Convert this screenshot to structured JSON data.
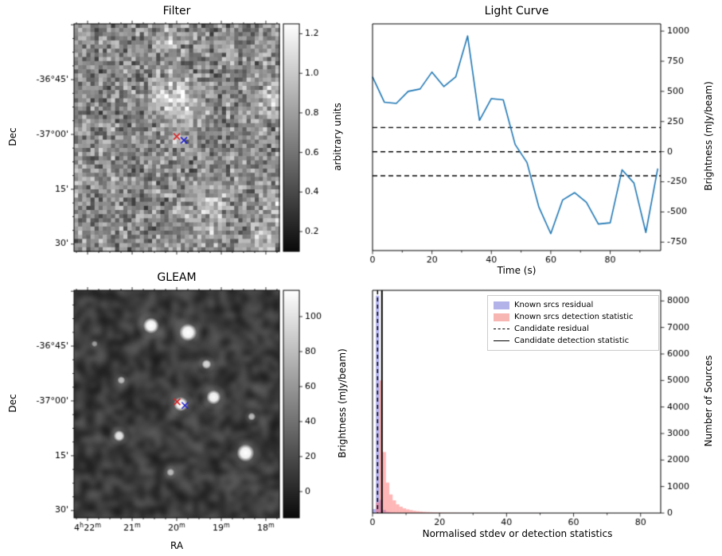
{
  "chart_data": [
    {
      "type": "heatmap",
      "title": "Filter",
      "xlabel": "",
      "ylabel": "Dec",
      "colorbar": {
        "label": "arbitrary units",
        "tick_labels": [
          "1.2",
          "1.0",
          "0.8",
          "0.6",
          "0.4",
          "0.2"
        ],
        "tick_values": [
          1.2,
          1.0,
          0.8,
          0.6,
          0.4,
          0.2
        ],
        "vmin": 0.1,
        "vmax": 1.25
      },
      "ytick_labels": [
        "-36°45'",
        "-37°00'",
        "15'",
        "30'"
      ],
      "ytick_pos": [
        0.245,
        0.486,
        0.727,
        0.965
      ],
      "xtick_pos": [
        0.066,
        0.283,
        0.5,
        0.717,
        0.934
      ],
      "markers": [
        {
          "shape": "x",
          "color": "#d62728",
          "x": 0.5,
          "y": 0.495
        },
        {
          "shape": "x",
          "color": "#2222cc",
          "x": 0.535,
          "y": 0.512
        }
      ]
    },
    {
      "type": "line",
      "title": "Light Curve",
      "xlabel": "Time (s)",
      "ylabel": "Brightness (mJy/beam)",
      "line_color": "#1f77b4",
      "x": [
        0,
        4,
        8,
        12,
        16,
        20,
        24,
        28,
        32,
        36,
        40,
        44,
        48,
        52,
        56,
        60,
        64,
        68,
        72,
        76,
        80,
        84,
        88,
        92,
        96
      ],
      "y": [
        620,
        410,
        400,
        500,
        520,
        660,
        540,
        620,
        960,
        260,
        440,
        430,
        60,
        -90,
        -460,
        -680,
        -400,
        -340,
        -420,
        -600,
        -590,
        -150,
        -260,
        -670,
        -140
      ],
      "xticks": [
        0,
        20,
        40,
        60,
        80
      ],
      "yticks": [
        1000,
        750,
        500,
        250,
        0,
        -250,
        -500,
        -750
      ],
      "xlim": [
        0,
        97
      ],
      "ylim": [
        -820,
        1060
      ],
      "hlines": {
        "style": "dashed",
        "values": [
          200,
          0,
          -200
        ]
      }
    },
    {
      "type": "heatmap",
      "title": "GLEAM",
      "xlabel": "RA",
      "ylabel": "Dec",
      "colorbar": {
        "label": "Brightness (mJy/beam)",
        "tick_labels": [
          "100",
          "80",
          "60",
          "40",
          "20",
          "0"
        ],
        "tick_values": [
          100,
          80,
          60,
          40,
          20,
          0
        ],
        "vmin": -15,
        "vmax": 115
      },
      "xtick_labels": [
        "4h22m",
        "21m",
        "20m",
        "19m",
        "18m"
      ],
      "xtick_pos": [
        0.066,
        0.283,
        0.5,
        0.717,
        0.934
      ],
      "ytick_labels": [
        "-36°45'",
        "-37°00'",
        "15'",
        "30'"
      ],
      "ytick_pos": [
        0.245,
        0.486,
        0.727,
        0.965
      ],
      "sources": [
        {
          "x": 0.375,
          "y": 0.155,
          "r": 10,
          "i": 1.0
        },
        {
          "x": 0.555,
          "y": 0.185,
          "r": 11,
          "i": 1.0
        },
        {
          "x": 0.645,
          "y": 0.325,
          "r": 6,
          "i": 0.75
        },
        {
          "x": 0.23,
          "y": 0.395,
          "r": 5,
          "i": 0.6
        },
        {
          "x": 0.1,
          "y": 0.235,
          "r": 4,
          "i": 0.45
        },
        {
          "x": 0.52,
          "y": 0.5,
          "r": 9,
          "i": 1.0
        },
        {
          "x": 0.68,
          "y": 0.47,
          "r": 9,
          "i": 0.95
        },
        {
          "x": 0.22,
          "y": 0.64,
          "r": 7,
          "i": 0.85
        },
        {
          "x": 0.865,
          "y": 0.555,
          "r": 5,
          "i": 0.6
        },
        {
          "x": 0.835,
          "y": 0.715,
          "r": 11,
          "i": 1.0
        },
        {
          "x": 0.47,
          "y": 0.8,
          "r": 5,
          "i": 0.55
        }
      ],
      "markers": [
        {
          "shape": "x",
          "color": "#d62728",
          "x": 0.502,
          "y": 0.49
        },
        {
          "shape": "x",
          "color": "#2222cc",
          "x": 0.54,
          "y": 0.506
        }
      ]
    },
    {
      "type": "bar",
      "title": "",
      "xlabel": "Normalised stdev or detection statistics",
      "ylabel": "Number of Sources",
      "bins": {
        "start": 0,
        "width": 1
      },
      "xticks": [
        0,
        20,
        40,
        60,
        80
      ],
      "yticks": [
        0,
        1000,
        2000,
        3000,
        4000,
        5000,
        6000,
        7000,
        8000
      ],
      "xlim": [
        0,
        86
      ],
      "ylim": [
        0,
        8400
      ],
      "series": [
        {
          "name": "Known srcs residual",
          "fill": "rgba(115,115,230,0.55)",
          "legend_color": "#b3b3ea",
          "values": [
            150,
            8200,
            500,
            120,
            40,
            15,
            6,
            3,
            2,
            1,
            1
          ]
        },
        {
          "name": "Known srcs detection statistic",
          "fill": "rgba(255,110,110,0.5)",
          "legend_color": "#f7b6b2",
          "values": [
            0,
            400,
            5000,
            2300,
            1150,
            700,
            480,
            330,
            240,
            180,
            140,
            110,
            85,
            70,
            55,
            45,
            38,
            32,
            27,
            22,
            19,
            17,
            15,
            13,
            12,
            11,
            10,
            9,
            8,
            8,
            7,
            7,
            6,
            6,
            5,
            5,
            5,
            4,
            4,
            4,
            3,
            3,
            3,
            3,
            2,
            2,
            2,
            2,
            2,
            2,
            2,
            2,
            1,
            1,
            1,
            1,
            1,
            1,
            1,
            1,
            1,
            1,
            1,
            1,
            1,
            1,
            1,
            1,
            1,
            1,
            1,
            1,
            1,
            1,
            1,
            1,
            1,
            1,
            1,
            1,
            1,
            1,
            1,
            1,
            1
          ]
        }
      ],
      "vlines": [
        {
          "name": "Candidate residual",
          "style": "dashed",
          "x": 1.5
        },
        {
          "name": "Candidate detection statistic",
          "style": "solid",
          "x": 2.8
        }
      ]
    }
  ]
}
